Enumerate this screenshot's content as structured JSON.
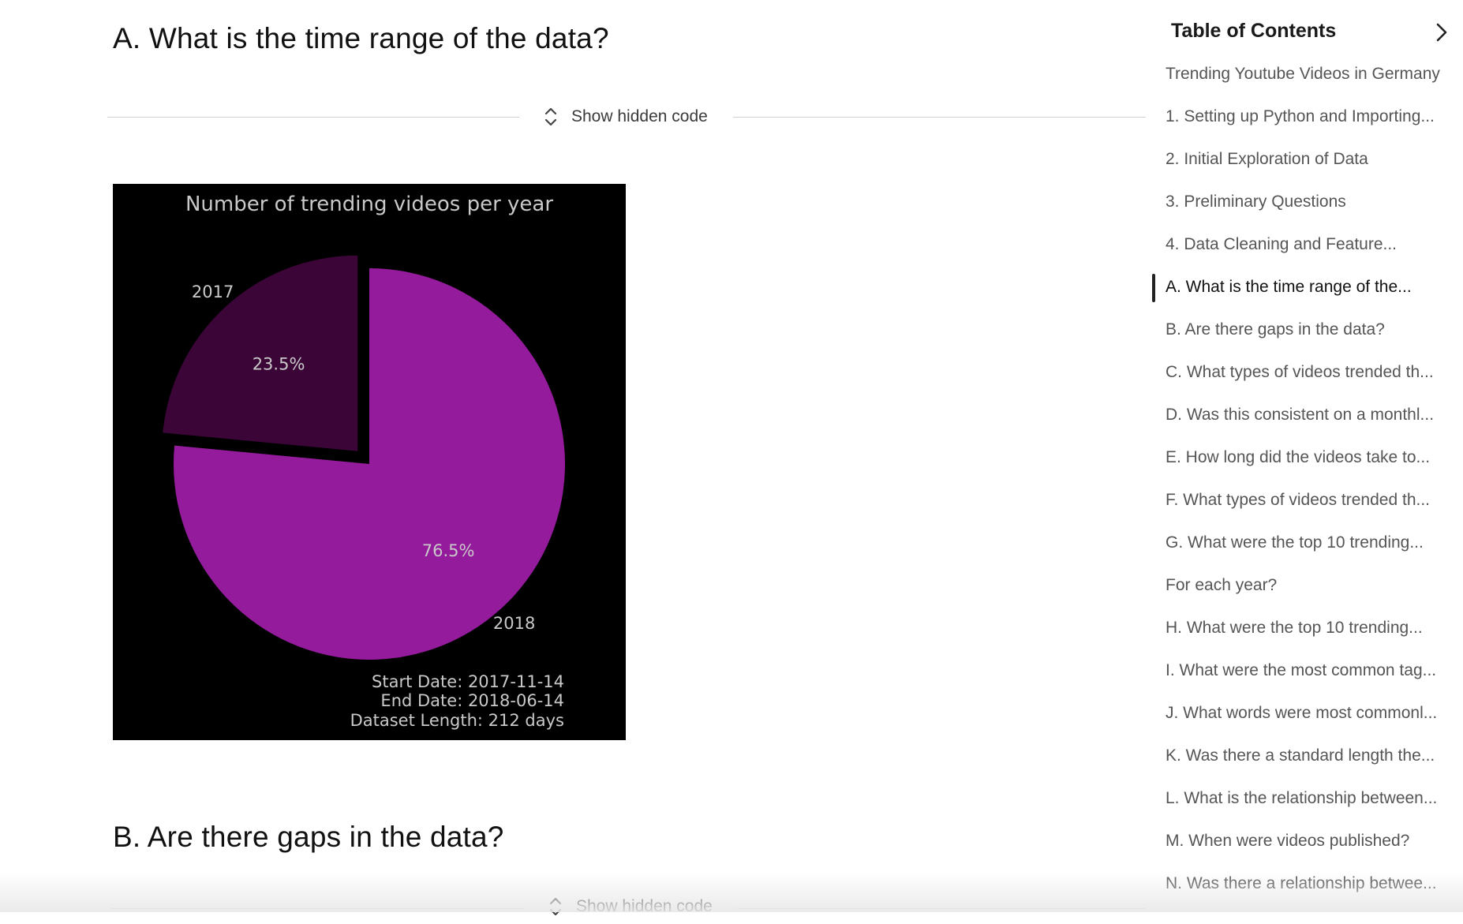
{
  "sections": [
    {
      "heading": "A. What is the time range of the data?",
      "toggle_label": "Show hidden code"
    },
    {
      "heading": "B. Are there gaps in the data?",
      "toggle_label": "Show hidden code"
    }
  ],
  "chart_data": {
    "type": "pie",
    "title": "Number of trending videos per year",
    "categories": [
      "2017",
      "2018"
    ],
    "values": [
      23.5,
      76.5
    ],
    "value_labels": [
      "23.5%",
      "76.5%"
    ],
    "exploded": [
      "2017"
    ],
    "colors": {
      "2017": "#3b0538",
      "2018": "#941b9b"
    },
    "background": "#000000",
    "annotations": [
      "Start Date: 2017-11-14",
      "End Date: 2018-06-14",
      "Dataset Length: 212 days"
    ]
  },
  "toc": {
    "title": "Table of Contents",
    "active_index": 5,
    "items": [
      "Trending Youtube Videos in Germany",
      "1. Setting up Python and Importing...",
      "2. Initial Exploration of Data",
      "3. Preliminary Questions",
      "4. Data Cleaning and Feature...",
      "A. What is the time range of the...",
      "B. Are there gaps in the data?",
      "C. What types of videos trended th...",
      "D. Was this consistent on a monthl...",
      "E. How long did the videos take to...",
      "F. What types of videos trended th...",
      "G. What were the top 10 trending...",
      "For each year?",
      "H. What were the top 10 trending...",
      "I. What were the most common tag...",
      "J. What words were most commonl...",
      "K. Was there a standard length the...",
      "L. What is the relationship between...",
      "M. When were videos published?",
      "N. Was there a relationship betwee..."
    ]
  }
}
